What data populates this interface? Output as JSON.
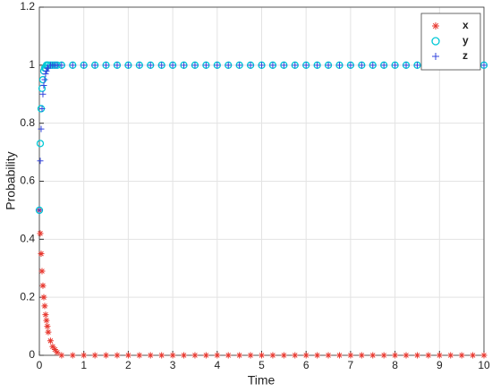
{
  "chart_data": {
    "type": "scatter",
    "xlabel": "Time",
    "ylabel": "Probability",
    "x": [
      0,
      0.02,
      0.04,
      0.06,
      0.08,
      0.1,
      0.12,
      0.14,
      0.16,
      0.18,
      0.2,
      0.25,
      0.3,
      0.35,
      0.4,
      0.5,
      0.75,
      1,
      1.25,
      1.5,
      1.75,
      2,
      2.25,
      2.5,
      2.75,
      3,
      3.25,
      3.5,
      3.75,
      4,
      4.25,
      4.5,
      4.75,
      5,
      5.25,
      5.5,
      5.75,
      6,
      6.25,
      6.5,
      6.75,
      7,
      7.25,
      7.5,
      7.75,
      8,
      8.25,
      8.5,
      8.75,
      9,
      9.25,
      9.5,
      9.75,
      10
    ],
    "series": [
      {
        "name": "x",
        "color": "#e8382f",
        "marker": "asterisk",
        "values": [
          0.5,
          0.42,
          0.35,
          0.29,
          0.24,
          0.2,
          0.17,
          0.14,
          0.12,
          0.1,
          0.08,
          0.05,
          0.03,
          0.02,
          0.01,
          0,
          0,
          0,
          0,
          0,
          0,
          0,
          0,
          0,
          0,
          0,
          0,
          0,
          0,
          0,
          0,
          0,
          0,
          0,
          0,
          0,
          0,
          0,
          0,
          0,
          0,
          0,
          0,
          0,
          0,
          0,
          0,
          0,
          0,
          0,
          0,
          0,
          0,
          0
        ]
      },
      {
        "name": "y",
        "color": "#00c8d6",
        "marker": "circle",
        "values": [
          0.5,
          0.73,
          0.85,
          0.92,
          0.95,
          0.98,
          0.99,
          0.99,
          1,
          1,
          1,
          1,
          1,
          1,
          1,
          1,
          1,
          1,
          1,
          1,
          1,
          1,
          1,
          1,
          1,
          1,
          1,
          1,
          1,
          1,
          1,
          1,
          1,
          1,
          1,
          1,
          1,
          1,
          1,
          1,
          1,
          1,
          1,
          1,
          1,
          1,
          1,
          1,
          1,
          1,
          1,
          1,
          1,
          1
        ]
      },
      {
        "name": "z",
        "color": "#3344dd",
        "marker": "plus",
        "values": [
          0.5,
          0.67,
          0.78,
          0.85,
          0.9,
          0.93,
          0.95,
          0.97,
          0.98,
          0.99,
          0.99,
          1,
          1,
          1,
          1,
          1,
          1,
          1,
          1,
          1,
          1,
          1,
          1,
          1,
          1,
          1,
          1,
          1,
          1,
          1,
          1,
          1,
          1,
          1,
          1,
          1,
          1,
          1,
          1,
          1,
          1,
          1,
          1,
          1,
          1,
          1,
          1,
          1,
          1,
          1,
          1,
          1,
          1,
          1
        ]
      }
    ],
    "xlim": [
      0,
      10
    ],
    "xticks": [
      0,
      1,
      2,
      3,
      4,
      5,
      6,
      7,
      8,
      9,
      10
    ],
    "ylim": [
      0,
      1.2
    ],
    "yticks": [
      0,
      0.2,
      0.4,
      0.6,
      0.8,
      1,
      1.2
    ],
    "grid": true,
    "legend": "northeast"
  }
}
